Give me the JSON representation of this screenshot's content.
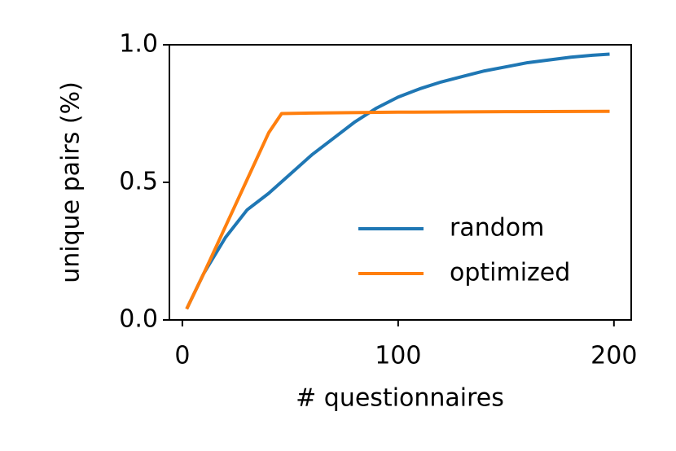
{
  "chart_data": {
    "type": "line",
    "xlabel": "# questionnaires",
    "ylabel": "unique pairs (%)",
    "xlim": [
      -6,
      208
    ],
    "ylim": [
      0,
      1
    ],
    "xticks": [
      0,
      100,
      200
    ],
    "yticks": [
      {
        "value": 0,
        "label": "0.0"
      },
      0.5,
      {
        "value": 1,
        "label": "1.0"
      }
    ],
    "legend": "lower right",
    "series": [
      {
        "name": "random",
        "color": "#1f77b4",
        "x": [
          2,
          10,
          20,
          30,
          40,
          50,
          60,
          70,
          80,
          90,
          100,
          110,
          120,
          130,
          140,
          150,
          160,
          170,
          180,
          190,
          198
        ],
        "values": [
          0.04,
          0.17,
          0.3,
          0.4,
          0.46,
          0.53,
          0.6,
          0.66,
          0.72,
          0.77,
          0.81,
          0.84,
          0.865,
          0.885,
          0.905,
          0.92,
          0.935,
          0.945,
          0.955,
          0.962,
          0.966
        ]
      },
      {
        "name": "optimized",
        "color": "#ff7f0e",
        "x": [
          2,
          10,
          20,
          30,
          40,
          46,
          60,
          100,
          150,
          198
        ],
        "values": [
          0.04,
          0.17,
          0.34,
          0.51,
          0.68,
          0.75,
          0.752,
          0.755,
          0.757,
          0.758
        ]
      }
    ]
  }
}
